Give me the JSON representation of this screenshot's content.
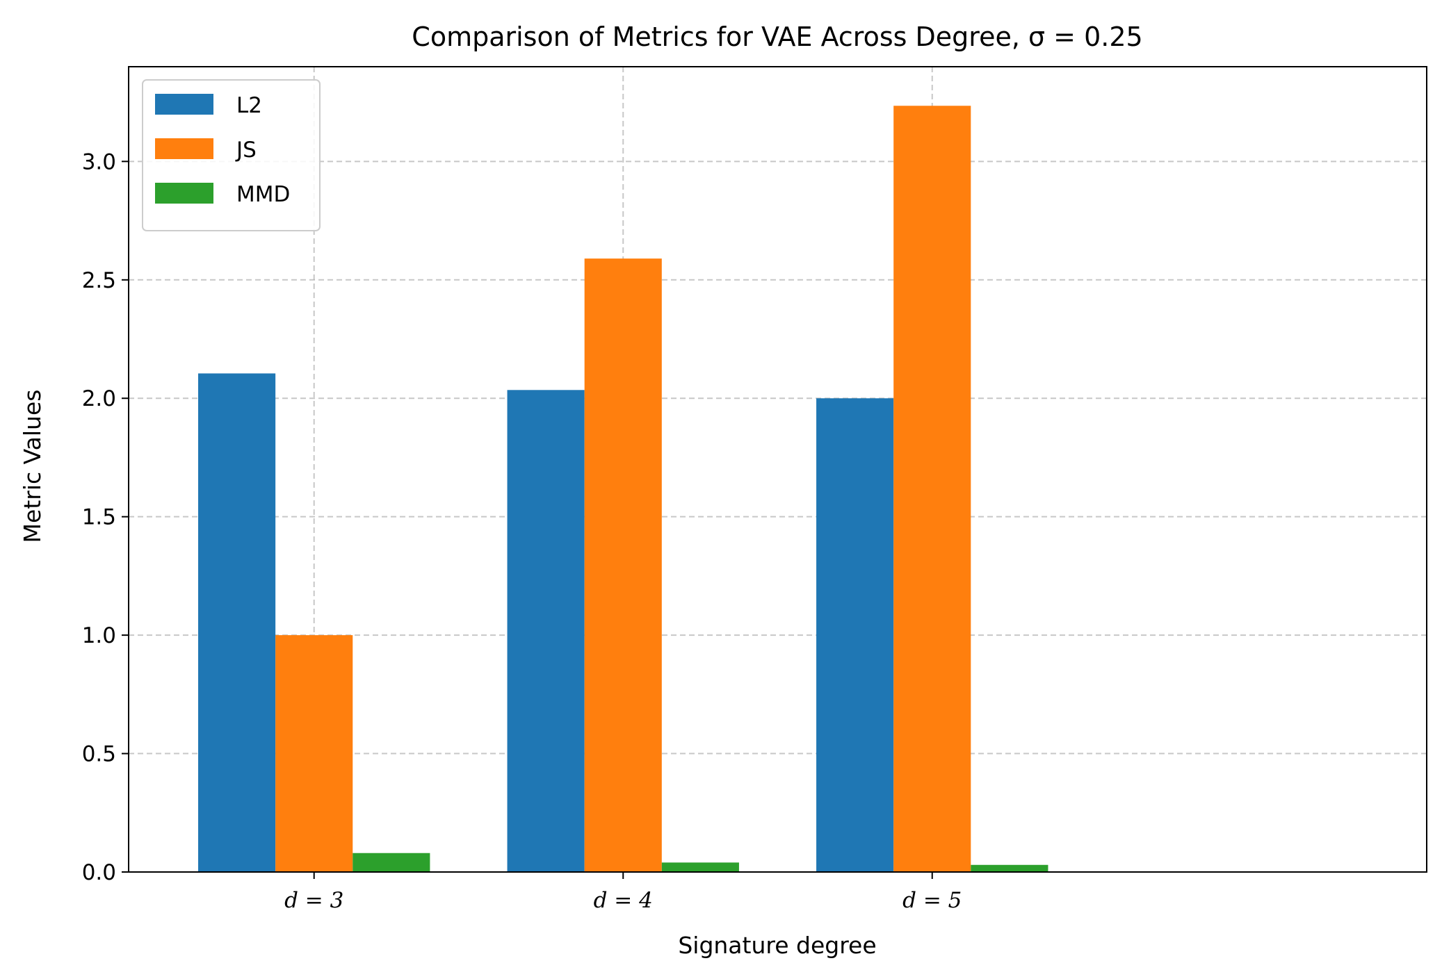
{
  "chart_data": {
    "type": "bar",
    "title": "Comparison of Metrics for VAE Across Degree, σ = 0.25",
    "xlabel": "Signature degree",
    "ylabel": "Metric Values",
    "categories": [
      "d = 3",
      "d = 4",
      "d = 5"
    ],
    "series": [
      {
        "name": "L2",
        "color": "#1f77b4",
        "values": [
          2.105,
          2.035,
          2.0
        ]
      },
      {
        "name": "JS",
        "color": "#ff7f0e",
        "values": [
          1.0,
          2.59,
          3.235
        ]
      },
      {
        "name": "MMD",
        "color": "#2ca02c",
        "values": [
          0.08,
          0.04,
          0.03
        ]
      }
    ],
    "ylim": [
      0,
      3.4
    ],
    "yticks": [
      0.0,
      0.5,
      1.0,
      1.5,
      2.0,
      2.5,
      3.0
    ],
    "ytick_labels": [
      "0.0",
      "0.5",
      "1.0",
      "1.5",
      "2.0",
      "2.5",
      "3.0"
    ],
    "grid": true,
    "legend": "top-left"
  }
}
